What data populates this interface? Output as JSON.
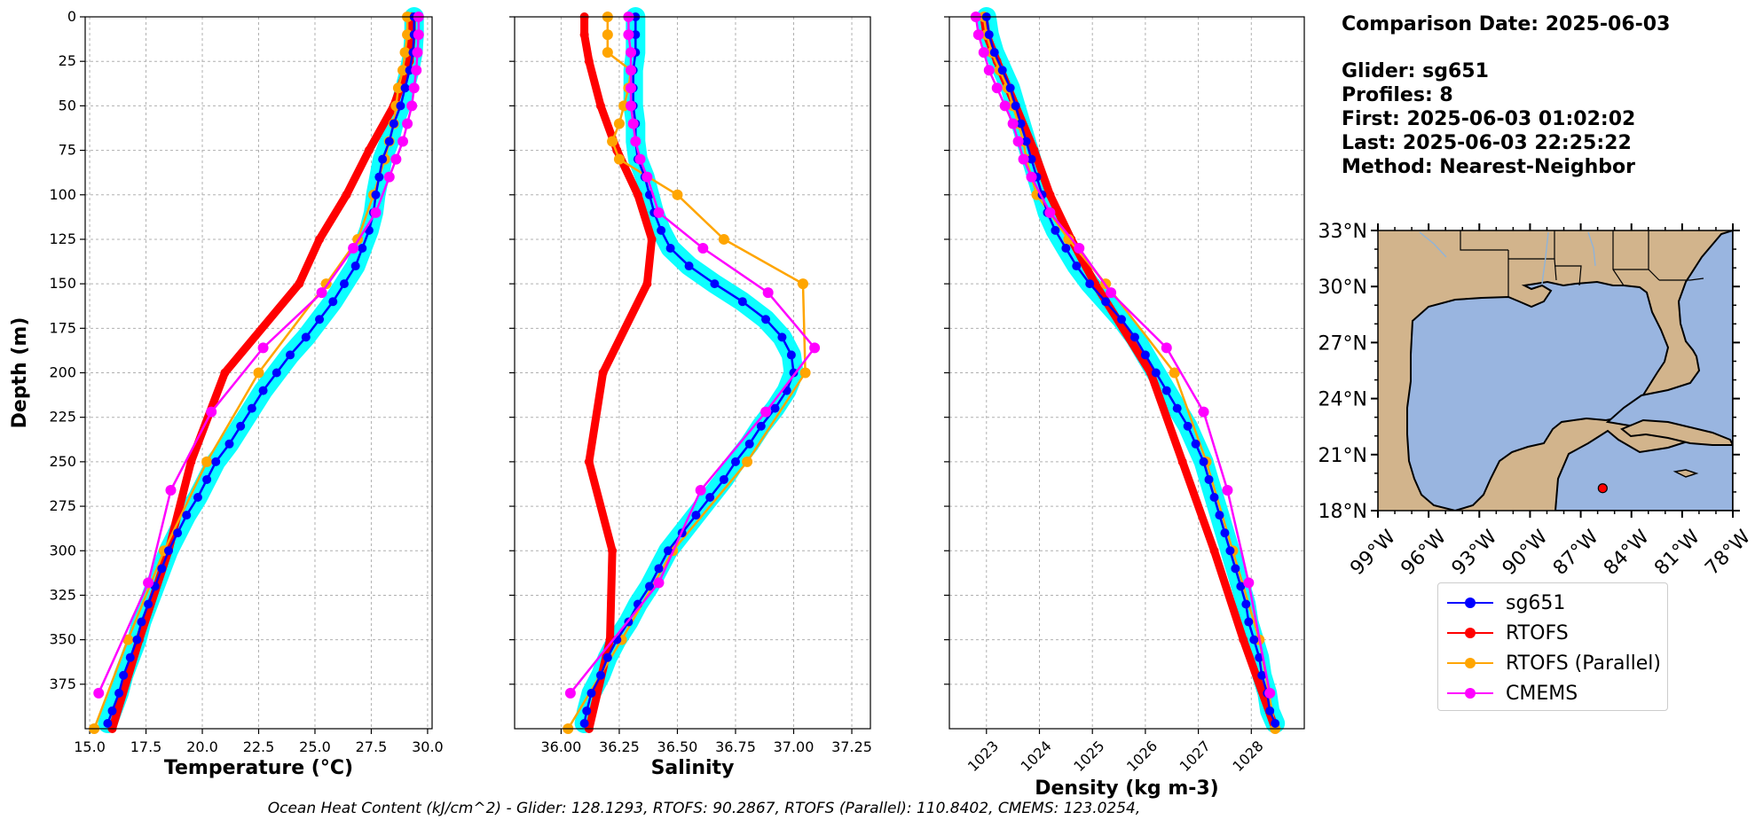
{
  "info": {
    "comparison_date": "Comparison Date: 2025-06-03",
    "glider": "Glider: sg651",
    "profiles": "Profiles: 8",
    "first": "First: 2025-06-03 01:02:02",
    "last": "Last: 2025-06-03 22:25:22",
    "method": "Method: Nearest-Neighbor"
  },
  "footer": "Ocean Heat Content (kJ/cm^2) - Glider: 128.1293,  RTOFS: 90.2867,  RTOFS (Parallel): 110.8402,  CMEMS: 123.0254,",
  "legend": [
    {
      "label": "sg651",
      "color": "#0000ff"
    },
    {
      "label": "RTOFS",
      "color": "#ff0000"
    },
    {
      "label": "RTOFS (Parallel)",
      "color": "#ffa500"
    },
    {
      "label": "CMEMS",
      "color": "#ff00ff"
    }
  ],
  "colors": {
    "glider": "#0000ff",
    "glider_band": "#00ffff",
    "rtofs": "#ff0000",
    "parallel": "#ffa500",
    "cmems": "#ff00ff",
    "land": "#d2b48c",
    "water": "#99b5e0"
  },
  "map": {
    "lat_ticks": [
      "18°N",
      "21°N",
      "24°N",
      "27°N",
      "30°N",
      "33°N"
    ],
    "lon_ticks": [
      "99°W",
      "96°W",
      "93°W",
      "90°W",
      "87°W",
      "84°W",
      "81°W",
      "78°W"
    ],
    "marker": {
      "lon": -85.7,
      "lat": 19.2
    }
  },
  "chart_data": [
    {
      "type": "line",
      "title": "",
      "xlabel": "Temperature (°C)",
      "ylabel": "Depth (m)",
      "xlim": [
        14.8,
        30.2
      ],
      "ylim": [
        400,
        0
      ],
      "grid": true,
      "x_ticks": [
        "15.0",
        "17.5",
        "20.0",
        "22.5",
        "25.0",
        "27.5",
        "30.0"
      ],
      "y_ticks": [
        "0",
        "25",
        "50",
        "75",
        "100",
        "125",
        "150",
        "175",
        "200",
        "225",
        "250",
        "275",
        "300",
        "325",
        "350",
        "375"
      ],
      "series": [
        {
          "name": "sg651",
          "depth": [
            0,
            10,
            20,
            30,
            40,
            50,
            60,
            70,
            80,
            90,
            100,
            110,
            120,
            130,
            140,
            150,
            160,
            170,
            180,
            190,
            200,
            210,
            220,
            230,
            240,
            250,
            260,
            270,
            280,
            290,
            300,
            310,
            320,
            330,
            340,
            350,
            360,
            370,
            380,
            390,
            397
          ],
          "values": [
            29.4,
            29.4,
            29.35,
            29.2,
            29.0,
            28.8,
            28.5,
            28.3,
            28.0,
            27.85,
            27.7,
            27.6,
            27.4,
            27.1,
            26.8,
            26.3,
            25.8,
            25.2,
            24.6,
            23.9,
            23.3,
            22.7,
            22.2,
            21.7,
            21.2,
            20.6,
            20.2,
            19.8,
            19.3,
            18.9,
            18.5,
            18.2,
            17.9,
            17.6,
            17.3,
            17.1,
            16.8,
            16.5,
            16.3,
            16.0,
            15.8
          ]
        },
        {
          "name": "RTOFS",
          "depth": [
            0,
            10,
            25,
            50,
            75,
            100,
            125,
            150,
            200,
            250,
            300,
            350,
            400
          ],
          "values": [
            29.3,
            29.3,
            29.2,
            28.5,
            27.4,
            26.4,
            25.2,
            24.3,
            21.0,
            19.5,
            18.5,
            17.2,
            16.0
          ]
        },
        {
          "name": "RTOFS (Parallel)",
          "depth": [
            0,
            10,
            20,
            30,
            40,
            50,
            60,
            70,
            80,
            100,
            125,
            150,
            200,
            250,
            300,
            350,
            400
          ],
          "values": [
            29.1,
            29.1,
            29.0,
            28.9,
            28.7,
            28.6,
            28.5,
            28.3,
            28.1,
            27.6,
            26.9,
            25.5,
            22.5,
            20.2,
            18.3,
            16.7,
            15.2
          ]
        },
        {
          "name": "CMEMS",
          "depth": [
            0,
            10,
            20,
            30,
            40,
            50,
            60,
            70,
            80,
            90,
            110,
            130,
            155,
            186,
            222,
            266,
            318,
            380
          ],
          "values": [
            29.6,
            29.6,
            29.55,
            29.5,
            29.4,
            29.3,
            29.1,
            28.9,
            28.6,
            28.3,
            27.7,
            26.7,
            25.3,
            22.7,
            20.4,
            18.6,
            17.6,
            15.4
          ]
        }
      ]
    },
    {
      "type": "line",
      "title": "",
      "xlabel": "Salinity",
      "ylabel": "",
      "xlim": [
        35.8,
        37.33
      ],
      "ylim": [
        400,
        0
      ],
      "grid": true,
      "x_ticks": [
        "36.00",
        "36.25",
        "36.50",
        "36.75",
        "37.00",
        "37.25"
      ],
      "series": [
        {
          "name": "sg651",
          "depth": [
            0,
            10,
            20,
            30,
            40,
            50,
            60,
            70,
            80,
            90,
            100,
            110,
            120,
            130,
            140,
            150,
            160,
            170,
            180,
            190,
            200,
            210,
            220,
            230,
            240,
            250,
            260,
            270,
            280,
            290,
            300,
            310,
            320,
            330,
            340,
            350,
            360,
            370,
            380,
            390,
            397
          ],
          "values": [
            36.32,
            36.32,
            36.32,
            36.31,
            36.31,
            36.31,
            36.32,
            36.32,
            36.33,
            36.36,
            36.38,
            36.4,
            36.43,
            36.47,
            36.55,
            36.66,
            36.78,
            36.88,
            36.95,
            36.99,
            37.0,
            36.97,
            36.92,
            36.86,
            36.81,
            36.75,
            36.7,
            36.64,
            36.58,
            36.52,
            36.46,
            36.42,
            36.38,
            36.33,
            36.29,
            36.24,
            36.2,
            36.17,
            36.13,
            36.11,
            36.1
          ]
        },
        {
          "name": "RTOFS",
          "depth": [
            0,
            10,
            25,
            50,
            75,
            100,
            125,
            150,
            200,
            250,
            300,
            350,
            400
          ],
          "values": [
            36.1,
            36.1,
            36.12,
            36.17,
            36.24,
            36.33,
            36.39,
            36.37,
            36.18,
            36.12,
            36.22,
            36.21,
            36.12
          ]
        },
        {
          "name": "RTOFS (Parallel)",
          "depth": [
            0,
            10,
            20,
            30,
            40,
            50,
            60,
            70,
            80,
            100,
            125,
            150,
            200,
            250,
            300,
            350,
            400
          ],
          "values": [
            36.2,
            36.2,
            36.2,
            36.3,
            36.29,
            36.27,
            36.25,
            36.22,
            36.25,
            36.5,
            36.7,
            37.04,
            37.05,
            36.8,
            36.48,
            36.26,
            36.03
          ]
        },
        {
          "name": "CMEMS",
          "depth": [
            0,
            10,
            20,
            30,
            40,
            50,
            60,
            70,
            80,
            90,
            110,
            130,
            155,
            186,
            222,
            266,
            318,
            380
          ],
          "values": [
            36.29,
            36.29,
            36.3,
            36.3,
            36.3,
            36.3,
            36.31,
            36.32,
            36.34,
            36.37,
            36.42,
            36.61,
            36.89,
            37.09,
            36.88,
            36.6,
            36.42,
            36.04
          ]
        }
      ]
    },
    {
      "type": "line",
      "title": "",
      "xlabel": "Density (kg m-3)",
      "ylabel": "",
      "xlim": [
        1022.3,
        1029.0
      ],
      "ylim": [
        400,
        0
      ],
      "grid": true,
      "x_ticks": [
        "1023",
        "1024",
        "1025",
        "1026",
        "1027",
        "1028"
      ],
      "series": [
        {
          "name": "sg651",
          "depth": [
            0,
            10,
            20,
            30,
            40,
            50,
            60,
            70,
            80,
            90,
            100,
            110,
            120,
            130,
            140,
            150,
            160,
            170,
            180,
            190,
            200,
            210,
            220,
            230,
            240,
            250,
            260,
            270,
            280,
            290,
            300,
            310,
            320,
            330,
            340,
            350,
            360,
            370,
            380,
            390,
            397
          ],
          "values": [
            1023.0,
            1023.05,
            1023.15,
            1023.3,
            1023.45,
            1023.55,
            1023.65,
            1023.75,
            1023.85,
            1023.95,
            1024.05,
            1024.15,
            1024.3,
            1024.5,
            1024.7,
            1024.95,
            1025.25,
            1025.55,
            1025.8,
            1026.0,
            1026.2,
            1026.4,
            1026.6,
            1026.8,
            1026.95,
            1027.1,
            1027.2,
            1027.3,
            1027.4,
            1027.5,
            1027.6,
            1027.7,
            1027.8,
            1027.9,
            1027.95,
            1028.05,
            1028.15,
            1028.2,
            1028.3,
            1028.35,
            1028.45
          ]
        },
        {
          "name": "RTOFS",
          "depth": [
            0,
            10,
            25,
            50,
            75,
            100,
            125,
            150,
            200,
            250,
            300,
            350,
            400
          ],
          "values": [
            1022.95,
            1023.0,
            1023.2,
            1023.55,
            1023.9,
            1024.2,
            1024.6,
            1025.05,
            1026.1,
            1026.7,
            1027.3,
            1027.85,
            1028.45
          ]
        },
        {
          "name": "RTOFS (Parallel)",
          "depth": [
            0,
            10,
            20,
            30,
            40,
            50,
            60,
            70,
            80,
            100,
            125,
            150,
            200,
            250,
            300,
            350,
            400
          ],
          "values": [
            1022.95,
            1023.0,
            1023.1,
            1023.25,
            1023.4,
            1023.5,
            1023.6,
            1023.7,
            1023.75,
            1023.95,
            1024.55,
            1025.25,
            1026.55,
            1027.15,
            1027.65,
            1028.15,
            1028.45
          ]
        },
        {
          "name": "CMEMS",
          "depth": [
            0,
            10,
            20,
            30,
            40,
            50,
            60,
            70,
            80,
            90,
            110,
            130,
            155,
            186,
            222,
            266,
            318,
            380
          ],
          "values": [
            1022.8,
            1022.85,
            1022.95,
            1023.05,
            1023.2,
            1023.35,
            1023.5,
            1023.6,
            1023.7,
            1023.85,
            1024.2,
            1024.75,
            1025.35,
            1026.4,
            1027.1,
            1027.55,
            1027.95,
            1028.35
          ]
        }
      ]
    }
  ]
}
